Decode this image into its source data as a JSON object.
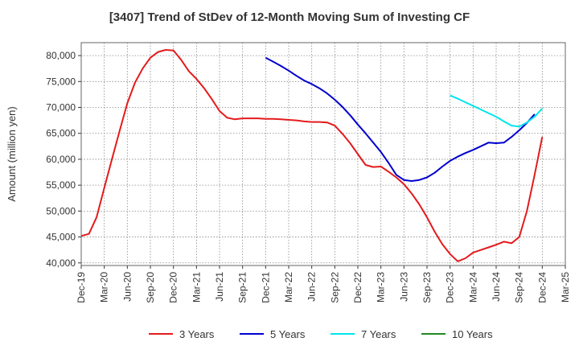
{
  "chart_data": {
    "type": "line",
    "title": "[3407]  Trend of StDev of 12-Month Moving Sum of Investing CF",
    "ylabel": "Amount (million yen)",
    "xlabel": "",
    "ylim": [
      39500,
      82500
    ],
    "yticks": [
      40000,
      45000,
      50000,
      55000,
      60000,
      65000,
      70000,
      75000,
      80000
    ],
    "ytick_labels": [
      "40,000",
      "45,000",
      "50,000",
      "55,000",
      "60,000",
      "65,000",
      "70,000",
      "75,000",
      "80,000"
    ],
    "xlim": [
      "Dec-19",
      "Mar-25"
    ],
    "xticks": [
      "Dec-19",
      "Mar-20",
      "Jun-20",
      "Sep-20",
      "Dec-20",
      "Mar-21",
      "Jun-21",
      "Sep-21",
      "Dec-21",
      "Mar-22",
      "Jun-22",
      "Sep-22",
      "Dec-22",
      "Mar-23",
      "Jun-23",
      "Sep-23",
      "Dec-23",
      "Mar-24",
      "Jun-24",
      "Sep-24",
      "Dec-24",
      "Mar-25"
    ],
    "grid": true,
    "legend_position": "bottom",
    "series": [
      {
        "name": "3 Years",
        "color": "#e41a1c",
        "x": [
          "Dec-19",
          "Jan-20",
          "Feb-20",
          "Mar-20",
          "Apr-20",
          "May-20",
          "Jun-20",
          "Jul-20",
          "Aug-20",
          "Sep-20",
          "Oct-20",
          "Nov-20",
          "Dec-20",
          "Jan-21",
          "Feb-21",
          "Mar-21",
          "Apr-21",
          "May-21",
          "Jun-21",
          "Jul-21",
          "Aug-21",
          "Sep-21",
          "Oct-21",
          "Nov-21",
          "Dec-21",
          "Jan-22",
          "Feb-22",
          "Mar-22",
          "Apr-22",
          "May-22",
          "Jun-22",
          "Jul-22",
          "Aug-22",
          "Sep-22",
          "Oct-22",
          "Nov-22",
          "Dec-22",
          "Jan-23",
          "Feb-23",
          "Mar-23",
          "Apr-23",
          "May-23",
          "Jun-23",
          "Jul-23",
          "Aug-23",
          "Sep-23",
          "Oct-23",
          "Nov-23",
          "Dec-23",
          "Jan-24",
          "Feb-24",
          "Mar-24",
          "Apr-24",
          "May-24",
          "Jun-24",
          "Jul-24",
          "Aug-24",
          "Sep-24",
          "Oct-24",
          "Nov-24",
          "Dec-24"
        ],
        "values": [
          45200,
          45600,
          48800,
          54500,
          60000,
          65500,
          70800,
          74800,
          77500,
          79600,
          80700,
          81100,
          81000,
          79200,
          77000,
          75500,
          73700,
          71600,
          69300,
          68000,
          67700,
          67900,
          67900,
          67900,
          67800,
          67800,
          67700,
          67600,
          67500,
          67300,
          67200,
          67200,
          67100,
          66500,
          64900,
          63100,
          61000,
          58900,
          58500,
          58600,
          57600,
          56500,
          55200,
          53400,
          51300,
          48800,
          46000,
          43600,
          41700,
          40300,
          40900,
          42000,
          42500,
          43000,
          43500,
          44100,
          43800,
          45000,
          50000,
          57000,
          64300
        ]
      },
      {
        "name": "5 Years",
        "color": "#0000cd",
        "x": [
          "Dec-21",
          "Jan-22",
          "Feb-22",
          "Mar-22",
          "Apr-22",
          "May-22",
          "Jun-22",
          "Jul-22",
          "Aug-22",
          "Sep-22",
          "Oct-22",
          "Nov-22",
          "Dec-22",
          "Jan-23",
          "Feb-23",
          "Mar-23",
          "Apr-23",
          "May-23",
          "Jun-23",
          "Jul-23",
          "Aug-23",
          "Sep-23",
          "Oct-23",
          "Nov-23",
          "Dec-23",
          "Jan-24",
          "Feb-24",
          "Mar-24",
          "Apr-24",
          "May-24",
          "Jun-24",
          "Jul-24",
          "Aug-24",
          "Sep-24",
          "Oct-24",
          "Nov-24",
          "Dec-24"
        ],
        "values": [
          79600,
          78800,
          78000,
          77100,
          76100,
          75200,
          74500,
          73700,
          72700,
          71500,
          70100,
          68500,
          66700,
          65000,
          63200,
          61400,
          59300,
          57000,
          56000,
          55800,
          56000,
          56500,
          57400,
          58600,
          59700,
          60500,
          61200,
          61800,
          62500,
          63200,
          63100,
          63200,
          64300,
          65600,
          67000,
          68700,
          null
        ],
        "values_note_removed": false
      },
      {
        "name": "7 Years",
        "color": "#00e5ee",
        "x": [
          "Dec-23",
          "Jan-24",
          "Feb-24",
          "Mar-24",
          "Apr-24",
          "May-24",
          "Jun-24",
          "Jul-24",
          "Aug-24",
          "Sep-24",
          "Oct-24",
          "Nov-24",
          "Dec-24"
        ],
        "values": [
          72300,
          71700,
          71000,
          70300,
          69600,
          68900,
          68200,
          67300,
          66500,
          66300,
          67100,
          68200,
          69800
        ]
      },
      {
        "name": "10 Years",
        "color": "#228b22",
        "x": [],
        "values": []
      }
    ]
  }
}
